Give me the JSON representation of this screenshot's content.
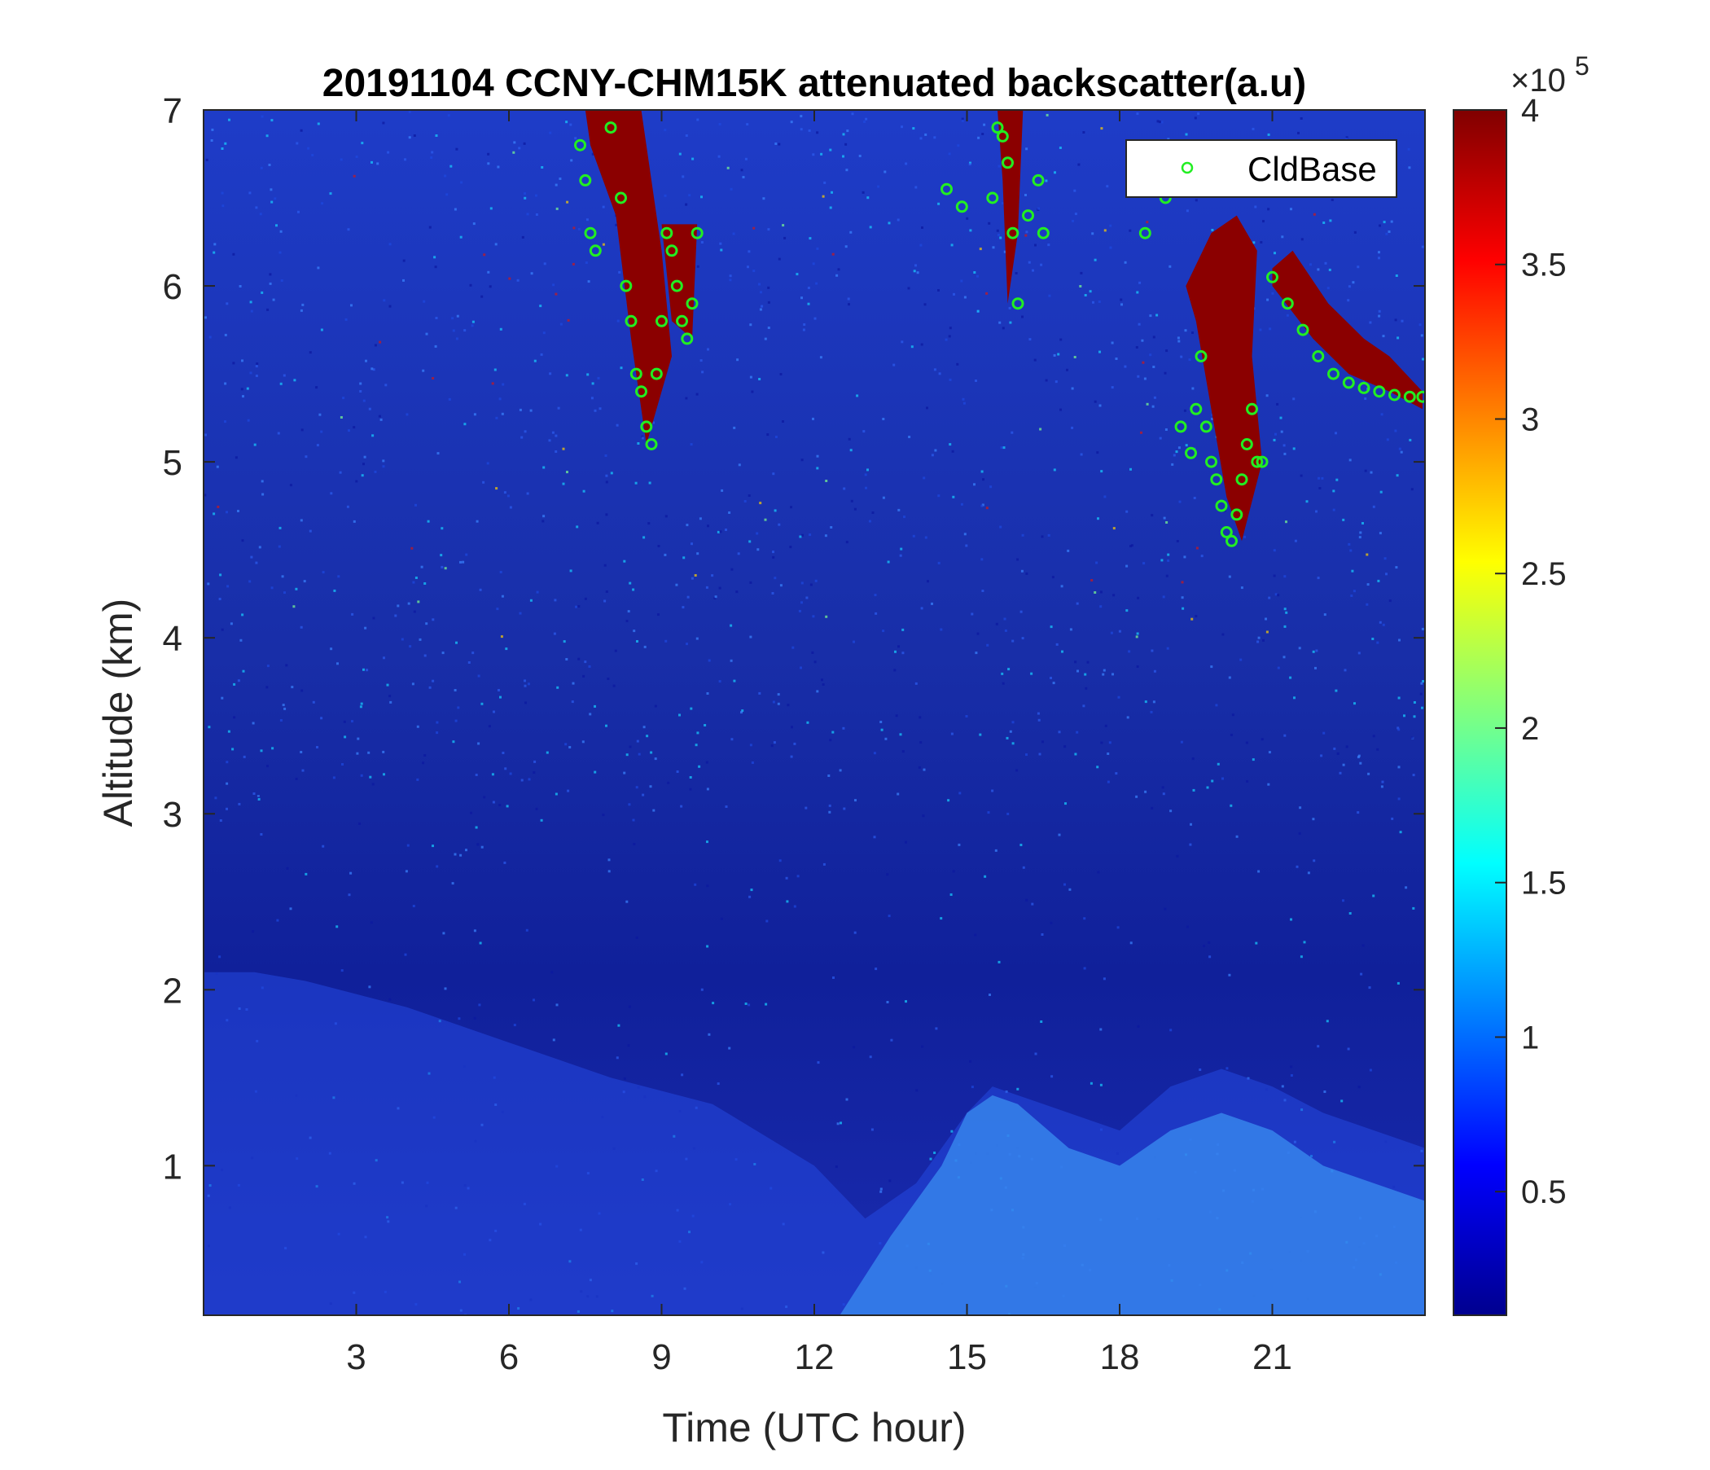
{
  "chart_data": {
    "type": "heatmap",
    "title": "20191104 CCNY-CHM15K attenuated backscatter(a.u)",
    "xlabel": "Time (UTC hour)",
    "ylabel": "Altitude (km)",
    "xlim": [
      0,
      24
    ],
    "ylim": [
      0.15,
      7
    ],
    "xticks": [
      3,
      6,
      9,
      12,
      15,
      18,
      21
    ],
    "yticks": [
      1,
      2,
      3,
      4,
      5,
      6,
      7
    ],
    "colormap": "jet",
    "colorbar": {
      "range": [
        0.1,
        4
      ],
      "ticks": [
        0.5,
        1,
        1.5,
        2,
        2.5,
        3,
        3.5,
        4
      ],
      "multiplier_base": "×10",
      "multiplier_exponent": "5"
    },
    "legend": {
      "position": "top-right",
      "entries": [
        "CldBase"
      ]
    },
    "colors": {
      "cloud_base_marker": "#22ee22",
      "cloud": "#8b0000",
      "background_low": "#1428b4",
      "aerosol_layer": "#2a64e6"
    },
    "series": [
      {
        "name": "CldBase",
        "marker": "circle-open",
        "x": [
          7.4,
          7.5,
          7.6,
          7.7,
          8.0,
          8.2,
          8.3,
          8.4,
          8.5,
          8.6,
          8.7,
          8.8,
          8.9,
          9.0,
          9.1,
          9.2,
          9.3,
          9.4,
          9.5,
          9.6,
          9.7,
          14.6,
          14.9,
          15.5,
          15.6,
          15.7,
          15.8,
          15.9,
          16.0,
          16.2,
          16.4,
          16.5,
          18.5,
          18.9,
          19.2,
          19.4,
          19.5,
          19.6,
          19.7,
          19.8,
          19.9,
          20.0,
          20.1,
          20.2,
          20.3,
          20.4,
          20.5,
          20.6,
          20.7,
          20.8,
          21.0,
          21.3,
          21.6,
          21.9,
          22.2,
          22.5,
          22.8,
          23.1,
          23.4,
          23.7,
          23.95
        ],
        "y": [
          6.8,
          6.6,
          6.3,
          6.2,
          6.9,
          6.5,
          6.0,
          5.8,
          5.5,
          5.4,
          5.2,
          5.1,
          5.5,
          5.8,
          6.3,
          6.2,
          6.0,
          5.8,
          5.7,
          5.9,
          6.3,
          6.55,
          6.45,
          6.5,
          6.9,
          6.85,
          6.7,
          6.3,
          5.9,
          6.4,
          6.6,
          6.3,
          6.3,
          6.5,
          5.2,
          5.05,
          5.3,
          5.6,
          5.2,
          5.0,
          4.9,
          4.75,
          4.6,
          4.55,
          4.7,
          4.9,
          5.1,
          5.3,
          5.0,
          5.0,
          6.05,
          5.9,
          5.75,
          5.6,
          5.5,
          5.45,
          5.42,
          5.4,
          5.38,
          5.37,
          5.37
        ]
      }
    ]
  }
}
